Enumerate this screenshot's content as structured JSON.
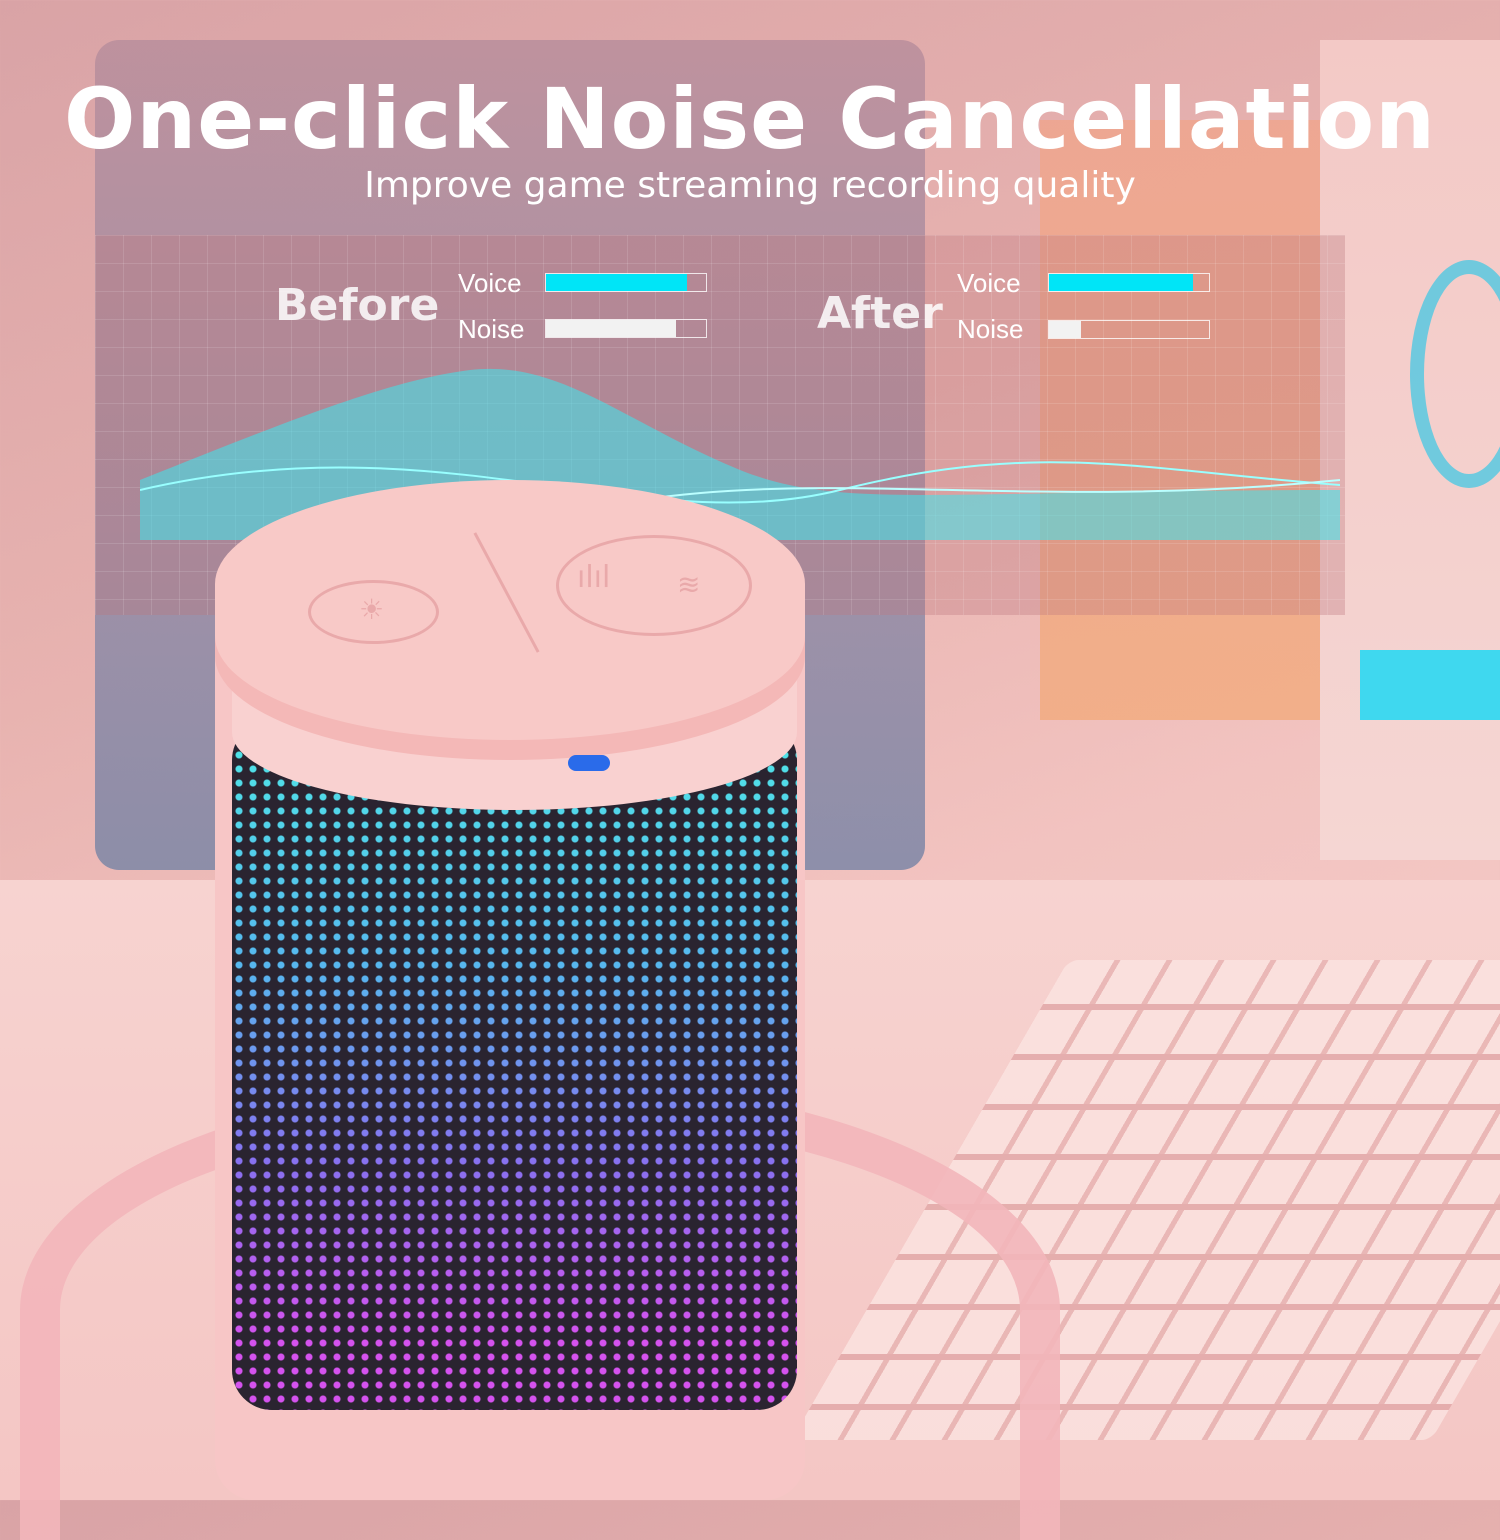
{
  "header": {
    "title": "One-click Noise Cancellation",
    "subtitle": "Improve game streaming recording quality"
  },
  "comparison": {
    "before": {
      "label": "Before",
      "voice_label": "Voice",
      "noise_label": "Noise",
      "voice_level_pct": 88,
      "noise_level_pct": 81
    },
    "after": {
      "label": "After",
      "voice_label": "Voice",
      "noise_label": "Noise",
      "voice_level_pct": 90,
      "noise_level_pct": 20
    }
  },
  "colors": {
    "voice_bar": "#00e5f7",
    "noise_bar": "#f2f2f2",
    "accent_glow": "#3fe8ee"
  },
  "icons": [
    "light-icon",
    "noise-cancel-icon",
    "mute-icon"
  ]
}
